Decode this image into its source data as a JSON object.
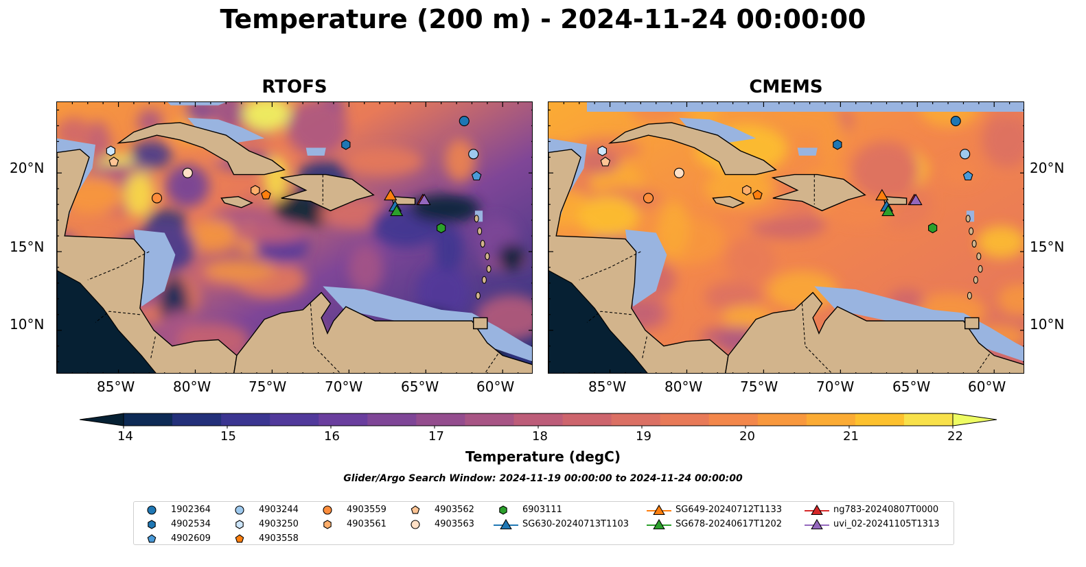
{
  "title": "Temperature (200 m) - 2024-11-24 00:00:00",
  "panels": [
    {
      "title": "RTOFS"
    },
    {
      "title": "CMEMS"
    }
  ],
  "lon_labels": [
    "85°W",
    "80°W",
    "75°W",
    "70°W",
    "65°W",
    "60°W"
  ],
  "lat_labels": [
    "20°N",
    "15°N",
    "10°N"
  ],
  "colorbar": {
    "label": "Temperature (degC)",
    "ticks": [
      "14",
      "15",
      "16",
      "17",
      "18",
      "19",
      "20",
      "21",
      "22"
    ],
    "colors": [
      "#062033",
      "#0d2a55",
      "#23307a",
      "#3b3591",
      "#51399b",
      "#6a3e9e",
      "#7f4697",
      "#944d8e",
      "#a85585",
      "#bd5d79",
      "#cd656d",
      "#db7064",
      "#e87a58",
      "#f3874b",
      "#f8983d",
      "#fbab34",
      "#fdc12e",
      "#f8e14a",
      "#eefc63"
    ]
  },
  "subtitle": "Glider/Argo Search Window: 2024-11-19 00:00:00 to 2024-11-24 00:00:00",
  "colors": {
    "land": "#d2b48c",
    "shallow": "#99b4e0",
    "deep": "#062033"
  },
  "legend": [
    {
      "label": "1902364",
      "marker": "circle",
      "color": "#1f77b4"
    },
    {
      "label": "4902534",
      "marker": "hexagon",
      "color": "#1f77b4"
    },
    {
      "label": "4902609",
      "marker": "pentagon",
      "color": "#4a9ad8"
    },
    {
      "label": "4903244",
      "marker": "circle",
      "color": "#9ec9ee"
    },
    {
      "label": "4903250",
      "marker": "hexagon",
      "color": "#cde6fb"
    },
    {
      "label": "4903558",
      "marker": "pentagon",
      "color": "#ff7f0e"
    },
    {
      "label": "4903559",
      "marker": "circle",
      "color": "#fd8d3c"
    },
    {
      "label": "4903561",
      "marker": "hexagon",
      "color": "#fdae6b"
    },
    {
      "label": "4903562",
      "marker": "pentagon",
      "color": "#fdc494"
    },
    {
      "label": "4903563",
      "marker": "circle",
      "color": "#fee0c6"
    },
    {
      "label": "6903111",
      "marker": "hexagon",
      "color": "#2ca02c"
    },
    {
      "label": "SG630-20240713T1103",
      "marker": "triangle-line",
      "color": "#1f77b4"
    },
    {
      "label": "SG649-20240712T1133",
      "marker": "triangle-line",
      "color": "#ff7f0e"
    },
    {
      "label": "SG678-20240617T1202",
      "marker": "triangle-line",
      "color": "#2ca02c"
    },
    {
      "label": "ng783-20240807T0000",
      "marker": "triangle-line",
      "color": "#d62728"
    },
    {
      "label": "uvi_02-20241105T1313",
      "marker": "triangle-line",
      "color": "#9467bd"
    }
  ],
  "points": [
    {
      "id": "1902364",
      "lon": -62.5,
      "lat": 23.3
    },
    {
      "id": "4902534",
      "lon": -70.2,
      "lat": 21.8
    },
    {
      "id": "4902609",
      "lon": -61.7,
      "lat": 19.8
    },
    {
      "id": "4903244",
      "lon": -61.9,
      "lat": 21.2
    },
    {
      "id": "4903250",
      "lon": -85.5,
      "lat": 21.4
    },
    {
      "id": "4903558",
      "lon": -75.4,
      "lat": 18.6
    },
    {
      "id": "4903559",
      "lon": -82.5,
      "lat": 18.4
    },
    {
      "id": "4903561",
      "lon": -76.1,
      "lat": 18.9
    },
    {
      "id": "4903562",
      "lon": -85.3,
      "lat": 20.7
    },
    {
      "id": "4903563",
      "lon": -80.5,
      "lat": 20.0
    },
    {
      "id": "6903111",
      "lon": -64.0,
      "lat": 16.5
    },
    {
      "id": "SG630-20240713T1103",
      "lon": -67.0,
      "lat": 17.8
    },
    {
      "id": "SG649-20240712T1133",
      "lon": -67.3,
      "lat": 18.5
    },
    {
      "id": "SG678-20240617T1202",
      "lon": -66.9,
      "lat": 17.5
    },
    {
      "id": "ng783-20240807T0000",
      "lon": -65.2,
      "lat": 18.2
    },
    {
      "id": "uvi_02-20241105T1313",
      "lon": -65.1,
      "lat": 18.2
    }
  ]
}
